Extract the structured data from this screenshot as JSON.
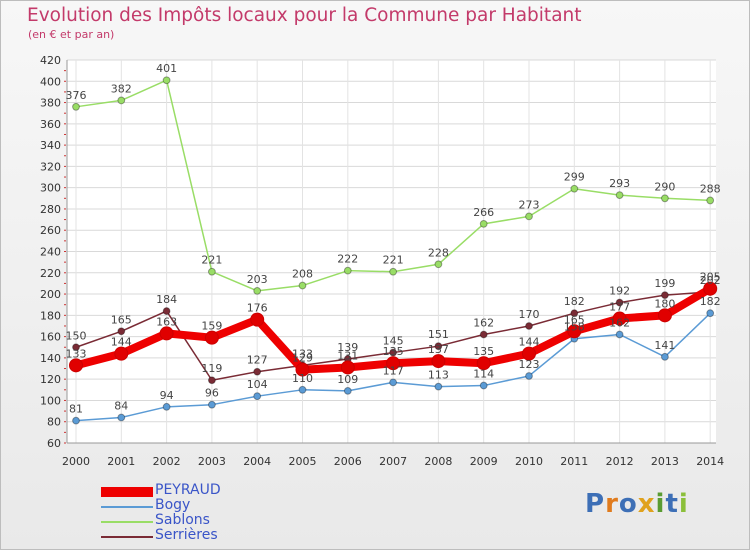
{
  "header": {
    "title": "Evolution des Impôts locaux pour la Commune par Habitant",
    "subtitle": "(en € et par an)"
  },
  "logo": {
    "text": "Proxiti"
  },
  "chart_data": {
    "type": "line",
    "title": "Evolution des Impôts locaux pour la Commune par Habitant",
    "subtitle": "(en € et par an)",
    "xlabel": "",
    "ylabel": "",
    "ylim": [
      60,
      420
    ],
    "ytick_step": 20,
    "grid": true,
    "legend_position": "bottom-left",
    "x": [
      "2000",
      "2001",
      "2002",
      "2003",
      "2004",
      "2005",
      "2006",
      "2007",
      "2008",
      "2009",
      "2010",
      "2011",
      "2012",
      "2013",
      "2014"
    ],
    "series": [
      {
        "name": "PEYRAUD",
        "color": "#ee0000",
        "values": [
          133,
          144,
          163,
          159,
          176,
          129,
          131,
          135,
          137,
          135,
          144,
          165,
          177,
          180,
          205
        ],
        "labels": [
          "133",
          "144",
          "163",
          "159",
          "176",
          "129",
          "131",
          "135",
          "137",
          "135",
          "144",
          "165",
          "177",
          "180",
          "205"
        ]
      },
      {
        "name": "Bogy",
        "color": "#5b9bd5",
        "values": [
          81,
          84,
          94,
          96,
          104,
          110,
          109,
          117,
          113,
          114,
          123,
          158,
          162,
          141,
          182
        ],
        "labels": [
          "81",
          "84",
          "94",
          "96",
          "104",
          "110",
          "109",
          "117",
          "113",
          "114",
          "123",
          "158",
          "162",
          "141",
          "182"
        ]
      },
      {
        "name": "Sablons",
        "color": "#99dd66",
        "values": [
          376,
          382,
          401,
          221,
          203,
          208,
          222,
          221,
          228,
          266,
          273,
          299,
          293,
          290,
          288
        ],
        "labels": [
          "376",
          "382",
          "401",
          "221",
          "203",
          "208",
          "222",
          "221",
          "228",
          "266",
          "273",
          "299",
          "293",
          "290",
          "288"
        ]
      },
      {
        "name": "Serrières",
        "color": "#7a2b35",
        "values": [
          150,
          165,
          184,
          119,
          127,
          133,
          139,
          145,
          151,
          162,
          170,
          182,
          192,
          199,
          202
        ],
        "labels": [
          "150",
          "165",
          "184",
          "119",
          "127",
          "133",
          "139",
          "145",
          "151",
          "162",
          "170",
          "182",
          "192",
          "199",
          "202"
        ]
      }
    ]
  }
}
